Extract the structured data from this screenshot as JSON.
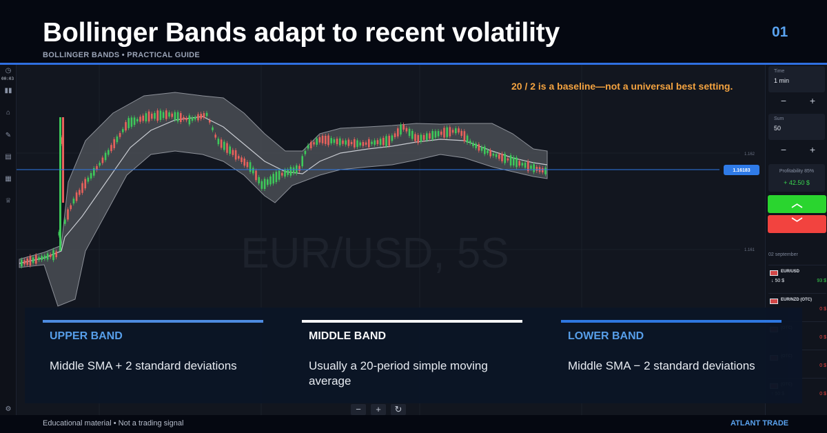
{
  "header": {
    "title": "Bollinger Bands adapt to recent volatility",
    "subtitle": "BOLLINGER BANDS • PRACTICAL GUIDE",
    "slide_number": "01"
  },
  "note": "20 / 2 is a baseline—not a universal best setting.",
  "platform": {
    "clock": "00:03",
    "left_toolbar_icons": [
      "timer-icon",
      "chart-type-icon",
      "home-icon",
      "drawing-icon",
      "orders-icon",
      "calendar-icon",
      "trophy-icon",
      "settings-icon"
    ],
    "watermark": "EUR/USD, 5S",
    "current_price": "1.16183",
    "price_ticks": [
      "1.162",
      "1.161"
    ],
    "time_box": {
      "label": "Time",
      "value": "1 min"
    },
    "sum_box": {
      "label": "Sum",
      "value": "50"
    },
    "stepper": {
      "minus": "−",
      "plus": "+"
    },
    "profitability": {
      "label": "Profitability 85%",
      "value": "+ 42.50 $"
    },
    "up_button": "︿",
    "down_button": "﹀",
    "date_label": "02 september",
    "assets": [
      {
        "name": "EUR/USD",
        "amount": "↓ 50 $",
        "profit": "93 $",
        "profit_color": "#3ad84f"
      },
      {
        "name": "EUR/NZD (OTC)",
        "amount": "",
        "profit": "0 $",
        "profit_color": "#f2433f"
      },
      {
        "name": "(OTC)",
        "amount": "",
        "profit": "0 $",
        "profit_color": "#f2433f"
      },
      {
        "name": "(OTC)",
        "amount": "",
        "profit": "0 $",
        "profit_color": "#f2433f"
      },
      {
        "name": "(OTC)",
        "amount": "↑ 50 $",
        "profit": "0 $",
        "profit_color": "#f2433f"
      }
    ],
    "chart_controls": [
      "−",
      "+",
      "↻"
    ]
  },
  "cards": [
    {
      "title": "UPPER BAND",
      "body": "Middle SMA + 2 standard deviations",
      "accent": "#4f8fe8",
      "title_color": "#5aa3f0"
    },
    {
      "title": "MIDDLE BAND",
      "body": "Usually a 20-period simple moving average",
      "accent": "#ffffff",
      "title_color": "#ffffff"
    },
    {
      "title": "LOWER BAND",
      "body": "Middle SMA − 2 standard deviations",
      "accent": "#2f7be8",
      "title_color": "#5aa3f0"
    }
  ],
  "footer": {
    "disclaimer": "Educational material • Not a trading signal",
    "brand": "ATLANT TRADE"
  },
  "colors": {
    "accent_blue": "#2f6fe0",
    "candle_up": "#3ec95a",
    "candle_down": "#e8625c",
    "band_fill": "#4a4d55",
    "price_line": "#2f7be8"
  }
}
